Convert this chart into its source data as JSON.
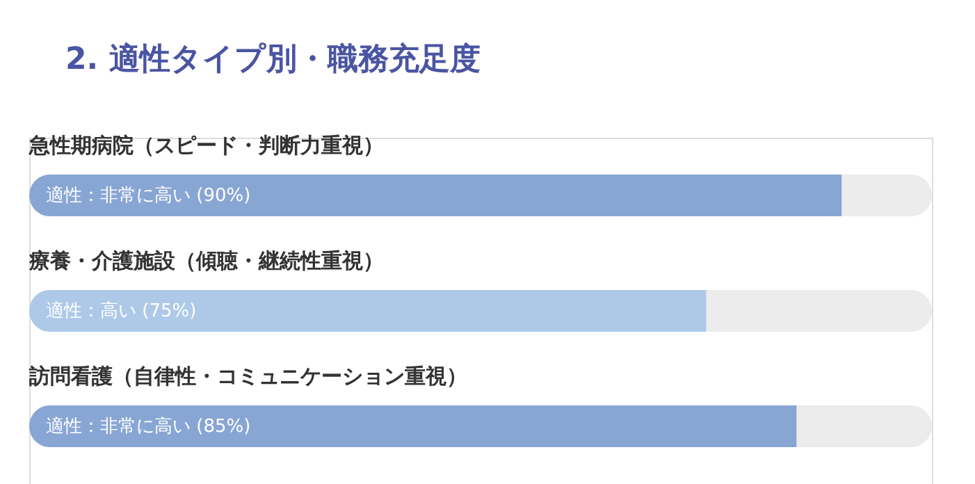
{
  "chart_data": {
    "type": "bar",
    "orientation": "horizontal",
    "title": "2. 適性タイプ別・職務充足度",
    "categories": [
      "急性期病院（スピード・判断力重視）",
      "療養・介護施設（傾聴・継続性重視）",
      "訪問看護（自律性・コミュニケーション重視）"
    ],
    "values": [
      90,
      75,
      85
    ],
    "value_labels": [
      "適性：非常に高い (90%)",
      "適性：高い (75%)",
      "適性：非常に高い (85%)"
    ],
    "colors": [
      "#88a6d4",
      "#aec9e8",
      "#88a6d4"
    ],
    "xlim": [
      0,
      100
    ]
  }
}
